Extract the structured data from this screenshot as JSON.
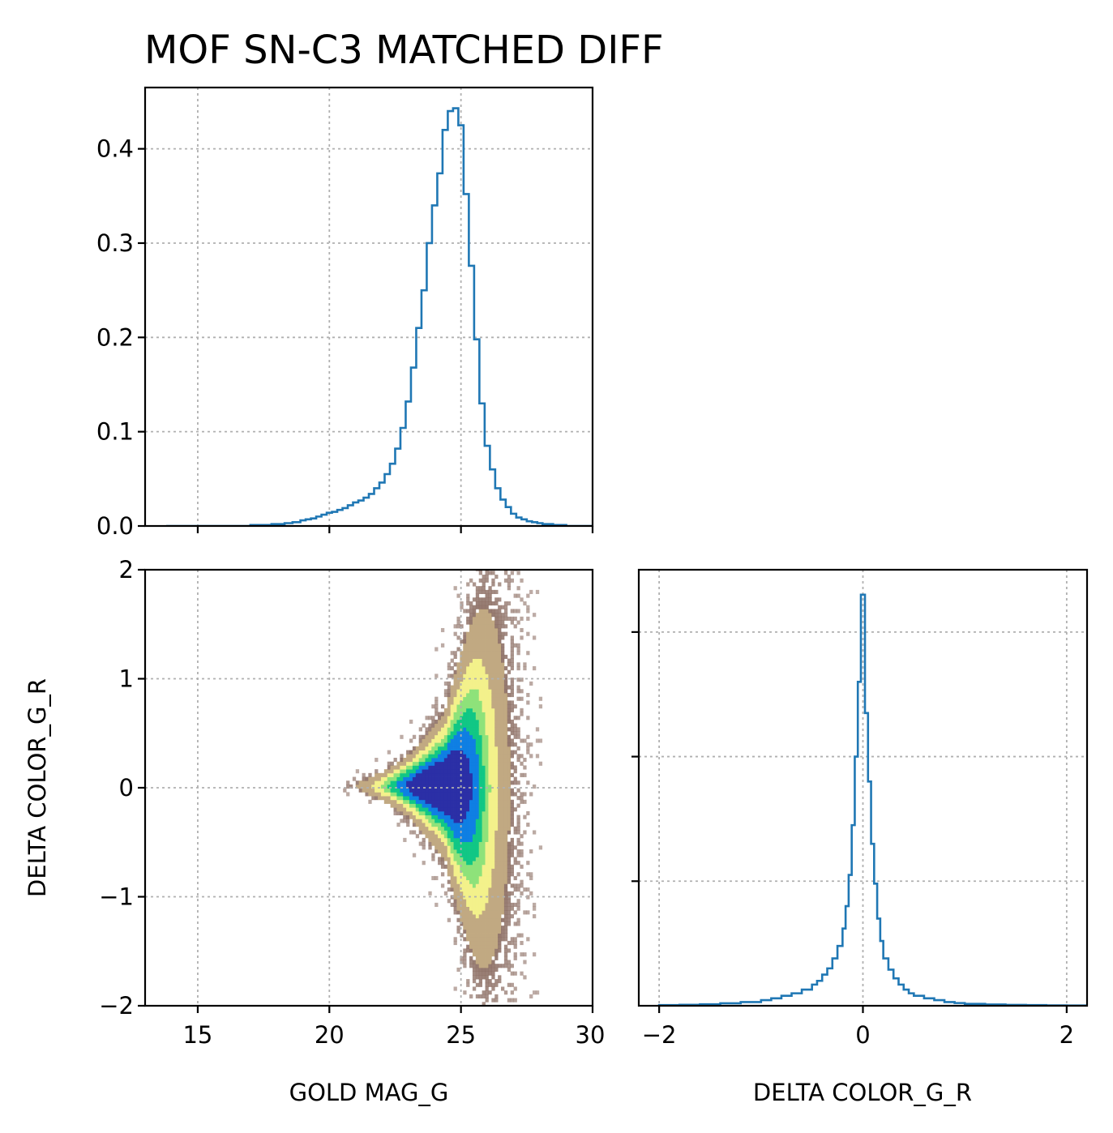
{
  "chart_data": [
    {
      "type": "line",
      "panel": "top-left",
      "title": "MOF SN-C3 MATCHED DIFF",
      "xlim": [
        13,
        30
      ],
      "ylim": [
        0,
        0.465
      ],
      "xticks": [
        15,
        20,
        25,
        30
      ],
      "yticks": [
        0.0,
        0.1,
        0.2,
        0.3,
        0.4
      ],
      "ytick_labels": [
        "0.0",
        "0.1",
        "0.2",
        "0.3",
        "0.4"
      ],
      "grid": true,
      "series": [
        {
          "color": "#1f77b4",
          "style": "step",
          "x": [
            13.8,
            14.5,
            15.0,
            15.5,
            16.0,
            16.5,
            17.0,
            17.5,
            17.8,
            18.0,
            18.3,
            18.6,
            18.9,
            19.1,
            19.3,
            19.5,
            19.7,
            19.9,
            20.1,
            20.3,
            20.5,
            20.7,
            20.9,
            21.1,
            21.3,
            21.5,
            21.7,
            21.9,
            22.1,
            22.3,
            22.5,
            22.7,
            22.9,
            23.1,
            23.3,
            23.5,
            23.7,
            23.9,
            24.1,
            24.3,
            24.5,
            24.7,
            24.9,
            25.1,
            25.3,
            25.5,
            25.7,
            25.9,
            26.1,
            26.3,
            26.5,
            26.7,
            26.9,
            27.1,
            27.3,
            27.5,
            27.7,
            27.9,
            28.1,
            28.3,
            28.5,
            29.0,
            29.5
          ],
          "y": [
            0,
            0,
            0,
            0,
            0,
            0,
            0.001,
            0.001,
            0.002,
            0.002,
            0.003,
            0.004,
            0.006,
            0.007,
            0.008,
            0.01,
            0.012,
            0.014,
            0.015,
            0.017,
            0.019,
            0.022,
            0.025,
            0.027,
            0.03,
            0.034,
            0.04,
            0.046,
            0.055,
            0.066,
            0.082,
            0.104,
            0.132,
            0.168,
            0.21,
            0.25,
            0.3,
            0.34,
            0.374,
            0.42,
            0.44,
            0.443,
            0.425,
            0.352,
            0.276,
            0.198,
            0.13,
            0.085,
            0.06,
            0.04,
            0.028,
            0.02,
            0.013,
            0.009,
            0.007,
            0.005,
            0.004,
            0.003,
            0.002,
            0.002,
            0.001,
            0.0,
            0.0
          ]
        }
      ]
    },
    {
      "type": "heatmap",
      "panel": "bottom-left",
      "xlabel": "GOLD MAG_G",
      "ylabel": "DELTA COLOR_G_R",
      "xlim": [
        13,
        30
      ],
      "ylim": [
        -2,
        2
      ],
      "xticks": [
        15,
        20,
        25,
        30
      ],
      "yticks": [
        -2,
        -1,
        0,
        1,
        2
      ],
      "ytick_labels": [
        "−2",
        "−1",
        "0",
        "1",
        "2"
      ],
      "xtick_labels": [
        "15",
        "20",
        "25",
        "30"
      ],
      "grid": true,
      "colormap": "terrain",
      "colormap_stops": [
        "#2b2fa6",
        "#0f7fe3",
        "#11c785",
        "#8ee27a",
        "#f3f18b",
        "#c1a982",
        "#8b6d62"
      ]
    },
    {
      "type": "line",
      "panel": "bottom-right",
      "xlabel": "DELTA COLOR_G_R",
      "xlim": [
        -2.2,
        2.2
      ],
      "ylim": [
        0,
        3.5
      ],
      "xticks": [
        -2,
        0,
        2
      ],
      "xtick_labels": [
        "−2",
        "0",
        "2"
      ],
      "yticks": [
        1,
        2,
        3
      ],
      "grid": true,
      "series": [
        {
          "color": "#1f77b4",
          "style": "step",
          "x": [
            -2.0,
            -1.8,
            -1.6,
            -1.4,
            -1.2,
            -1.0,
            -0.9,
            -0.8,
            -0.7,
            -0.6,
            -0.5,
            -0.45,
            -0.4,
            -0.35,
            -0.3,
            -0.25,
            -0.2,
            -0.17,
            -0.14,
            -0.11,
            -0.08,
            -0.05,
            -0.02,
            0.0,
            0.02,
            0.05,
            0.08,
            0.11,
            0.14,
            0.17,
            0.2,
            0.25,
            0.3,
            0.35,
            0.4,
            0.45,
            0.5,
            0.6,
            0.7,
            0.8,
            0.9,
            1.0,
            1.2,
            1.4,
            1.6,
            1.8,
            2.0
          ],
          "y": [
            0.005,
            0.008,
            0.012,
            0.02,
            0.03,
            0.045,
            0.06,
            0.08,
            0.1,
            0.13,
            0.17,
            0.2,
            0.25,
            0.3,
            0.38,
            0.48,
            0.62,
            0.8,
            1.05,
            1.45,
            2.0,
            2.6,
            3.3,
            3.3,
            2.35,
            1.8,
            1.3,
            0.98,
            0.7,
            0.52,
            0.38,
            0.29,
            0.22,
            0.17,
            0.13,
            0.1,
            0.08,
            0.06,
            0.045,
            0.03,
            0.022,
            0.015,
            0.01,
            0.007,
            0.005,
            0.003,
            0.002
          ]
        }
      ]
    }
  ]
}
